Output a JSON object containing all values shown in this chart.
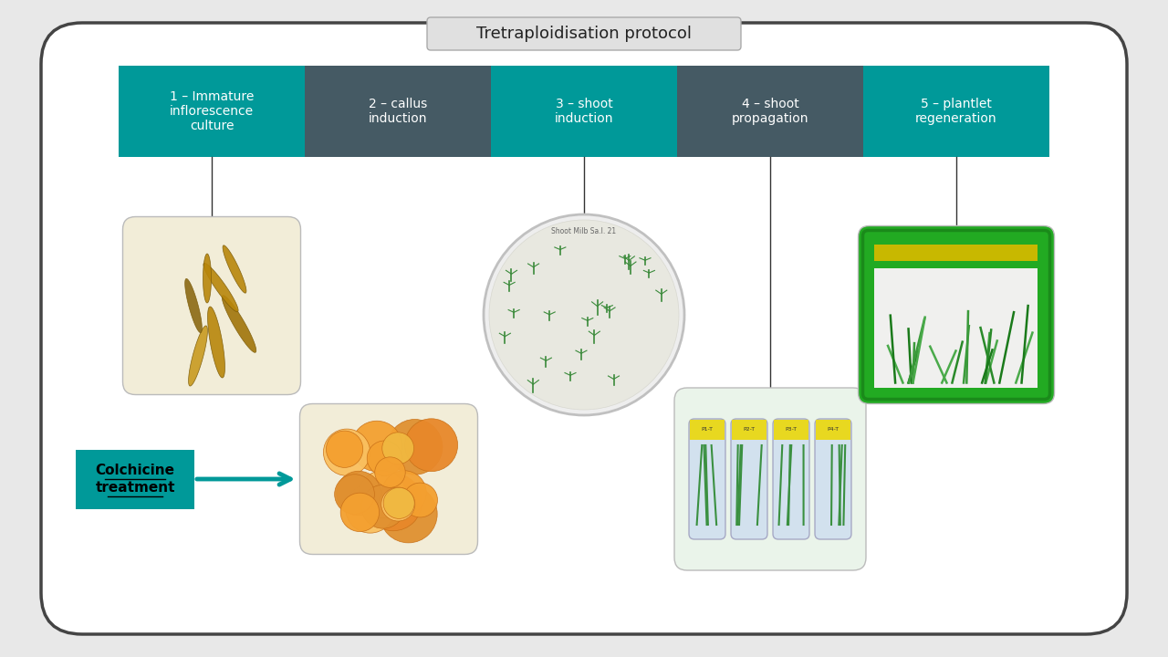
{
  "title": "Tretraploidisation protocol",
  "title_box_color": "#e0e0e0",
  "title_font_size": 13,
  "steps": [
    {
      "label": "1 – Immature\ninflorescence\nculture",
      "color": "#009999"
    },
    {
      "label": "2 – callus\ninduction",
      "color": "#455a64"
    },
    {
      "label": "3 – shoot\ninduction",
      "color": "#009999"
    },
    {
      "label": "4 – shoot\npropagation",
      "color": "#455a64"
    },
    {
      "label": "5 – plantlet\nregeneration",
      "color": "#009999"
    }
  ],
  "step_text_color": "#ffffff",
  "background_color": "#ffffff",
  "border_color": "#444444",
  "colchicine_label": "Colchicine\ntreatment",
  "colchicine_color": "#009999",
  "colchicine_text_color": "#000000",
  "outer_bg": "#e8e8e8",
  "frame_bg": "#ffffff"
}
